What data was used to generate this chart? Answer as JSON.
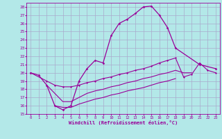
{
  "xlabel": "Windchill (Refroidissement éolien,°C)",
  "bg_color": "#b3e8e8",
  "grid_color": "#aaaacc",
  "line_color": "#990099",
  "xlim": [
    -0.5,
    23.5
  ],
  "ylim": [
    15,
    28.5
  ],
  "xticks": [
    0,
    1,
    2,
    3,
    4,
    5,
    6,
    7,
    8,
    9,
    10,
    11,
    12,
    13,
    14,
    15,
    16,
    17,
    18,
    19,
    20,
    21,
    22,
    23
  ],
  "yticks": [
    15,
    16,
    17,
    18,
    19,
    20,
    21,
    22,
    23,
    24,
    25,
    26,
    27,
    28
  ],
  "line1_x": [
    0,
    1,
    2,
    3,
    4,
    5,
    6,
    7,
    8,
    9,
    10,
    11,
    12,
    13,
    14,
    15,
    16,
    17,
    18,
    21,
    23
  ],
  "line1_y": [
    20.0,
    19.7,
    18.5,
    16.0,
    15.5,
    16.0,
    19.0,
    20.5,
    21.5,
    21.2,
    24.5,
    26.0,
    26.5,
    27.2,
    28.0,
    28.1,
    27.0,
    25.5,
    23.0,
    21.0,
    20.5
  ],
  "line2_x": [
    0,
    2,
    3,
    4,
    5,
    6,
    7,
    8,
    9,
    10,
    11,
    12,
    13,
    14,
    15,
    16,
    17,
    18,
    19,
    20,
    21,
    22,
    23
  ],
  "line2_y": [
    20.0,
    19.0,
    18.5,
    18.3,
    18.3,
    18.5,
    18.8,
    19.0,
    19.3,
    19.5,
    19.8,
    20.0,
    20.3,
    20.5,
    20.8,
    21.2,
    21.5,
    21.8,
    19.5,
    19.8,
    21.2,
    20.3,
    20.0
  ],
  "line3_x": [
    2,
    3,
    4,
    5,
    6,
    7,
    8,
    9,
    10,
    11,
    12,
    13,
    14,
    15,
    16,
    17,
    18,
    19,
    20
  ],
  "line3_y": [
    18.5,
    17.5,
    16.5,
    16.5,
    17.0,
    17.5,
    17.8,
    18.0,
    18.3,
    18.5,
    18.8,
    19.0,
    19.3,
    19.5,
    19.8,
    20.0,
    20.3,
    20.0,
    20.0
  ],
  "line4_x": [
    3,
    4,
    5,
    6,
    7,
    8,
    9,
    10,
    11,
    12,
    13,
    14,
    15,
    16,
    17,
    18
  ],
  "line4_y": [
    16.0,
    15.8,
    15.8,
    16.2,
    16.5,
    16.8,
    17.0,
    17.3,
    17.5,
    17.8,
    18.0,
    18.2,
    18.5,
    18.8,
    19.0,
    19.3
  ]
}
